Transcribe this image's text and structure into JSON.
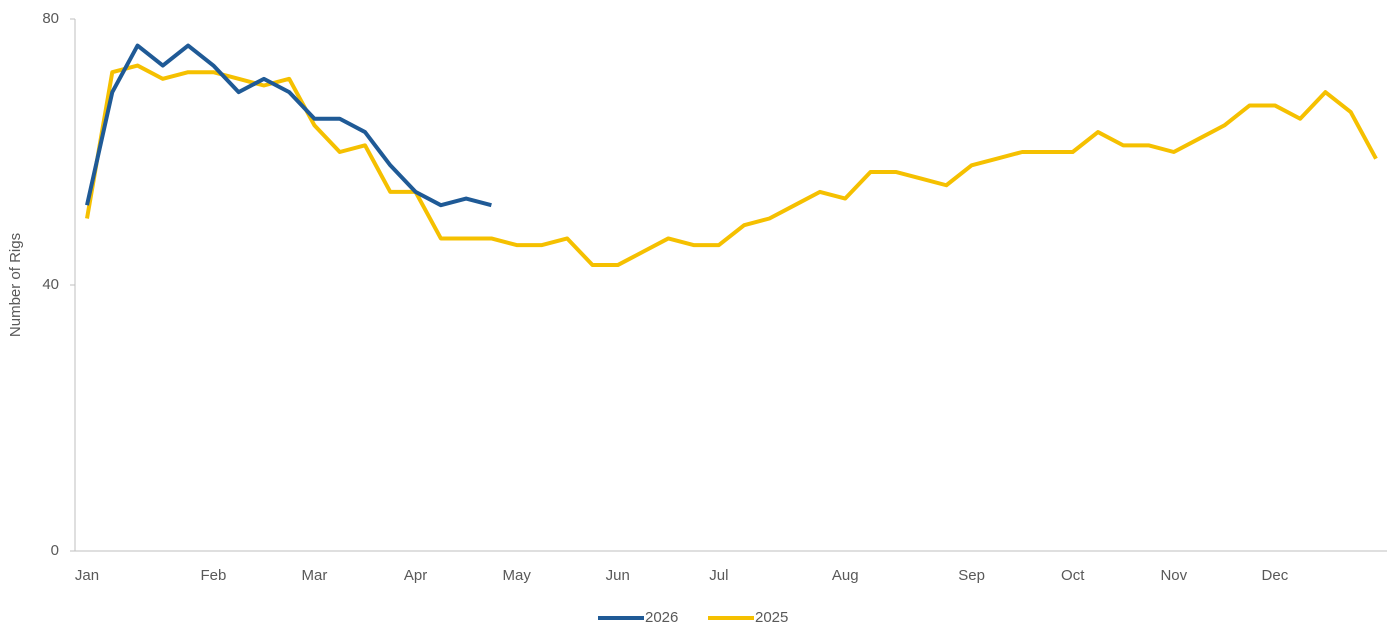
{
  "chart_data": {
    "type": "line",
    "y_label": "Number of Rigs",
    "categories": [
      "Jan",
      null,
      null,
      null,
      null,
      "Feb",
      null,
      null,
      null,
      "Mar",
      null,
      null,
      null,
      "Apr",
      null,
      null,
      null,
      "May",
      null,
      null,
      null,
      "Jun",
      null,
      null,
      null,
      "Jul",
      null,
      null,
      null,
      null,
      "Aug",
      null,
      null,
      null,
      null,
      "Sep",
      null,
      null,
      null,
      "Oct",
      null,
      null,
      null,
      "Nov",
      null,
      null,
      null,
      "Dec",
      null,
      null,
      null,
      null
    ],
    "series": [
      {
        "name": "2026",
        "color": "#1f5a96",
        "values": [
          52,
          69,
          76,
          73,
          76,
          73,
          69,
          71,
          69,
          65,
          65,
          63,
          58,
          54,
          52,
          53,
          52,
          null,
          null,
          null,
          null,
          null,
          null,
          null,
          null,
          null,
          null,
          null,
          null,
          null,
          null,
          null,
          null,
          null,
          null,
          null,
          null,
          null,
          null,
          null,
          null,
          null,
          null,
          null,
          null,
          null,
          null,
          null,
          null,
          null,
          null,
          null
        ]
      },
      {
        "name": "2025",
        "color": "#f5c000",
        "values": [
          50,
          72,
          73,
          71,
          72,
          72,
          71,
          70,
          71,
          64,
          60,
          61,
          54,
          54,
          47,
          47,
          47,
          46,
          46,
          47,
          43,
          43,
          45,
          47,
          46,
          46,
          49,
          50,
          52,
          54,
          53,
          57,
          57,
          56,
          55,
          58,
          59,
          60,
          60,
          60,
          63,
          61,
          61,
          60,
          62,
          64,
          67,
          67,
          65,
          69,
          66,
          59
        ]
      }
    ],
    "ylim": [
      0,
      80
    ],
    "yticks": [
      0,
      40,
      80
    ],
    "legend": "bottom"
  }
}
